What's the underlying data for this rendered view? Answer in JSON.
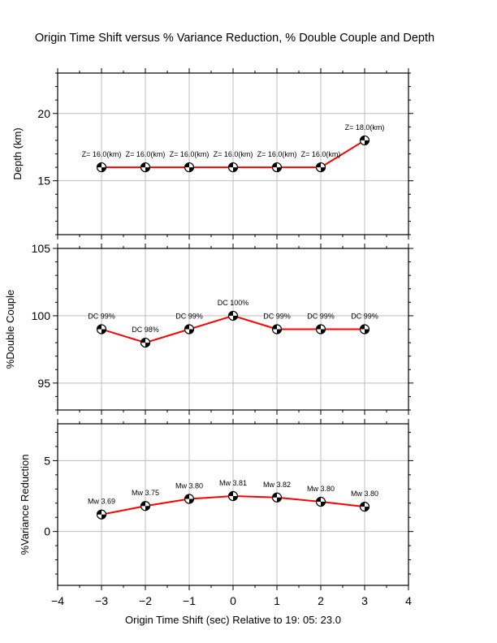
{
  "chart_data": {
    "type": "line",
    "title": "Origin Time Shift versus % Variance Reduction, % Double Couple and Depth",
    "xlabel": "Origin Time Shift (sec) Relative to 19: 05: 23.0",
    "x": [
      -3,
      -2,
      -1,
      0,
      1,
      2,
      3
    ],
    "xlim": [
      -4,
      4
    ],
    "xticks": [
      -4,
      -3,
      -2,
      -1,
      0,
      1,
      2,
      3,
      4
    ],
    "xtick_labels": [
      "−4",
      "−3",
      "−2",
      "−1",
      "0",
      "1",
      "2",
      "3",
      "4"
    ],
    "line_color": "#ff0000",
    "grid": true,
    "panels": [
      {
        "id": "depth",
        "ylabel": "Depth (km)",
        "ylim": [
          11,
          23
        ],
        "yticks": [
          15,
          20
        ],
        "ytick_labels": [
          "15",
          "20"
        ],
        "values": [
          16,
          16,
          16,
          16,
          16,
          16,
          18
        ],
        "annotations": [
          "Z= 16.0(km)",
          "Z= 16.0(km)",
          "Z= 16.0(km)",
          "Z= 16.0(km)",
          "Z= 16.0(km)",
          "Z= 16.0(km)",
          "Z= 18.0(km)"
        ]
      },
      {
        "id": "double-couple",
        "ylabel": "%Double Couple",
        "ylim": [
          93,
          105
        ],
        "yticks": [
          95,
          100,
          105
        ],
        "ytick_labels": [
          "95",
          "100",
          "105"
        ],
        "values": [
          99,
          98,
          99,
          100,
          99,
          99,
          99
        ],
        "annotations": [
          "DC 99%",
          "DC 98%",
          "DC 99%",
          "DC 100%",
          "DC 99%",
          "DC 99%",
          "DC 99%"
        ]
      },
      {
        "id": "variance-reduction",
        "ylabel": "%Variance Reduction",
        "ylim": [
          -3.8,
          7.6
        ],
        "yticks": [
          0,
          5
        ],
        "ytick_labels": [
          "0",
          "5"
        ],
        "values": [
          1.2,
          1.8,
          2.3,
          2.5,
          2.4,
          2.1,
          1.75
        ],
        "annotations": [
          "Mw 3.69",
          "Mw 3.75",
          "Mw 3.80",
          "Mw 3.81",
          "Mw 3.82",
          "Mw 3.80",
          "Mw 3.80"
        ]
      }
    ]
  }
}
